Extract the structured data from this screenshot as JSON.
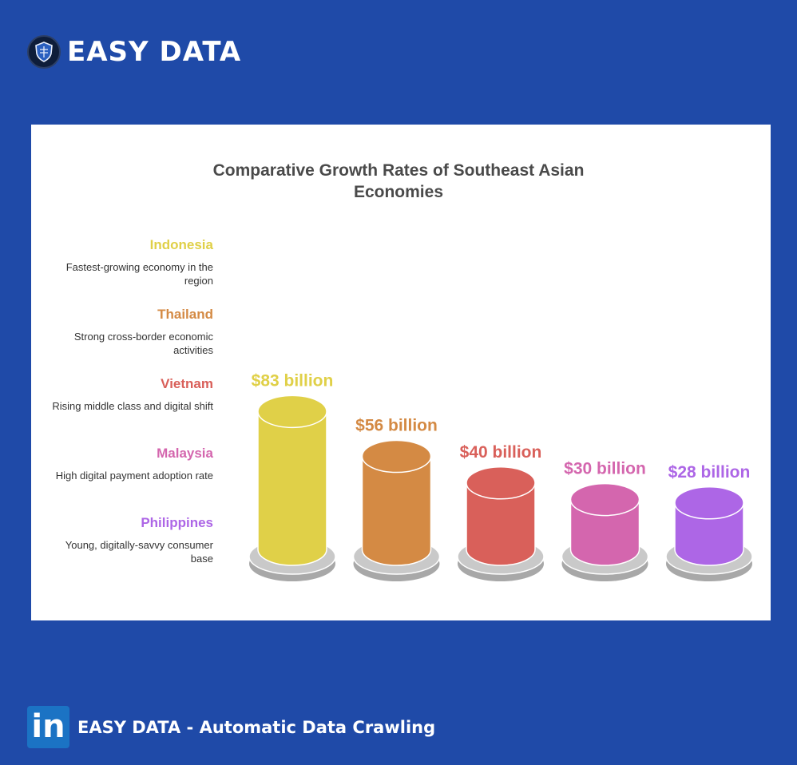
{
  "brand": {
    "title": "EASY DATA",
    "logo_icon": "shield-badge-icon"
  },
  "footer": {
    "icon": "linkedin-icon",
    "icon_text": "in",
    "text": "EASY DATA - Automatic Data Crawling"
  },
  "chart_data": {
    "type": "bar",
    "title": "Comparative Growth Rates of Southeast Asian Economies",
    "categories": [
      "Indonesia",
      "Thailand",
      "Vietnam",
      "Malaysia",
      "Philippines"
    ],
    "descriptions": [
      "Fastest-growing economy in the region",
      "Strong cross-border economic activities",
      "Rising middle class and digital shift",
      "High digital payment adoption rate",
      "Young, digitally-savvy consumer base"
    ],
    "values": [
      83,
      56,
      40,
      30,
      28
    ],
    "value_labels": [
      "$83 billion",
      "$56 billion",
      "$40 billion",
      "$30 billion",
      "$28 billion"
    ],
    "unit": "$ billion",
    "colors": [
      "#e0d048",
      "#d48a44",
      "#d9605a",
      "#d466ae",
      "#ad66e6"
    ],
    "legend_placement": "left",
    "grid": false
  }
}
